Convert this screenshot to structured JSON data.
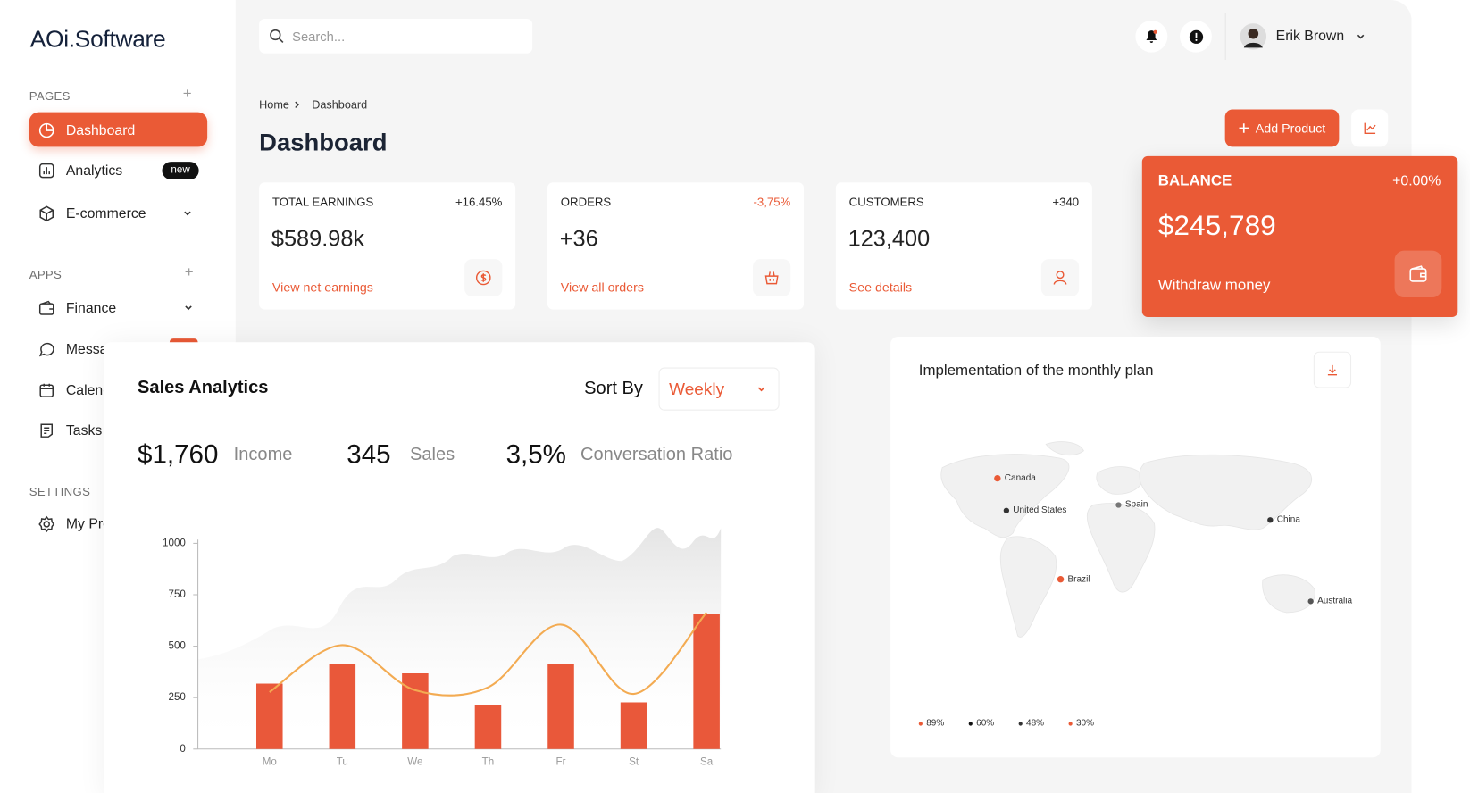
{
  "sidebar": {
    "logo": "AOi.Software",
    "sections": [
      {
        "label": "PAGES",
        "items": [
          {
            "label": "Dashboard"
          },
          {
            "label": "Analytics",
            "badge": "new"
          },
          {
            "label": "E-commerce"
          }
        ]
      },
      {
        "label": "APPS",
        "items": [
          {
            "label": "Finance"
          },
          {
            "label": "Messages"
          },
          {
            "label": "Calendar"
          },
          {
            "label": "Tasks"
          }
        ]
      },
      {
        "label": "SETTINGS",
        "items": [
          {
            "label": "My Profile"
          }
        ]
      }
    ]
  },
  "header": {
    "search_placeholder": "Search...",
    "user": "Erik Brown"
  },
  "breadcrumb": [
    "Home",
    "Dashboard"
  ],
  "page_title": "Dashboard",
  "add_button": "Add Product",
  "stats": [
    {
      "label": "TOTAL EARNINGS",
      "change": "+16.45%",
      "value": "$589.98k",
      "link": "View net earnings"
    },
    {
      "label": "ORDERS",
      "change": "-3,75%",
      "value": "+36",
      "link": "View all orders"
    },
    {
      "label": "CUSTOMERS",
      "change": "+340",
      "value": "123,400",
      "link": "See details"
    }
  ],
  "balance": {
    "label": "BALANCE",
    "change": "+0.00%",
    "value": "$245,789",
    "link": "Withdraw money"
  },
  "sales": {
    "title": "Sales Analytics",
    "sort_label": "Sort By",
    "sort_value": "Weekly",
    "metrics": [
      {
        "value": "$1,760",
        "label": "Income"
      },
      {
        "value": "345",
        "label": "Sales"
      },
      {
        "value": "3,5%",
        "label": "Conversation Ratio"
      }
    ]
  },
  "chart_data": {
    "type": "bar",
    "categories": [
      "Mo",
      "Tu",
      "We",
      "Th",
      "Fr",
      "St",
      "Sa"
    ],
    "series": [
      {
        "type": "bar",
        "color": "#e9583a",
        "values": [
          318,
          414,
          368,
          214,
          414,
          227,
          655
        ]
      },
      {
        "type": "line",
        "color": "#f3ab52",
        "values": [
          277,
          505,
          286,
          300,
          605,
          268,
          664
        ]
      }
    ],
    "ylim": [
      0,
      1000
    ],
    "yticks": [
      0,
      250,
      500,
      750,
      1000
    ],
    "grid": false
  },
  "map": {
    "title": "Implementation of the monthly plan",
    "markers": [
      {
        "label": "Canada"
      },
      {
        "label": "United States"
      },
      {
        "label": "Spain"
      },
      {
        "label": "China"
      },
      {
        "label": "Brazil"
      },
      {
        "label": "Australia"
      }
    ],
    "legend": [
      {
        "label": "89%"
      },
      {
        "label": "60%"
      },
      {
        "label": "48%"
      },
      {
        "label": "30%"
      }
    ]
  }
}
